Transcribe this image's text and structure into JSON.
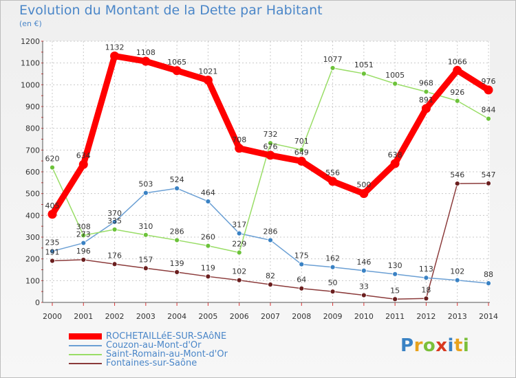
{
  "header": {
    "title": "Evolution du Montant de la Dette par Habitant",
    "unit": "(en €)"
  },
  "logo": {
    "text": "Proxiti",
    "letters": [
      {
        "ch": "P",
        "color": "#3a82c4"
      },
      {
        "ch": "r",
        "color": "#e8a21c"
      },
      {
        "ch": "o",
        "color": "#7bbf3a"
      },
      {
        "ch": "x",
        "color": "#d9391f"
      },
      {
        "ch": "i",
        "color": "#3a82c4"
      },
      {
        "ch": "t",
        "color": "#e8a21c"
      },
      {
        "ch": "i",
        "color": "#7bbf3a"
      }
    ]
  },
  "chart_data": {
    "type": "line",
    "title": "Evolution du Montant de la Dette par Habitant",
    "ylabel": "(en €)",
    "xlabel": "",
    "x": [
      "2000",
      "2001",
      "2002",
      "2003",
      "2004",
      "2005",
      "2006",
      "2007",
      "2008",
      "2009",
      "2010",
      "2011",
      "2012",
      "2013",
      "2014"
    ],
    "ylim": [
      0,
      1200
    ],
    "yticks": [
      0,
      100,
      200,
      300,
      400,
      500,
      600,
      700,
      800,
      900,
      1000,
      1100,
      1200
    ],
    "grid": true,
    "legend_position": "bottom-left",
    "series": [
      {
        "name": "ROCHETAILLéE-SUR-SAôNE",
        "color": "#ff0000",
        "marker": "#ff0000",
        "width": "thick",
        "values": [
          405,
          634,
          1132,
          1108,
          1065,
          1021,
          708,
          676,
          649,
          556,
          500,
          638,
          891,
          1066,
          976
        ]
      },
      {
        "name": "Couzon-au-Mont-d'Or",
        "color": "#6a9fd4",
        "marker": "#3a82c4",
        "width": "thin",
        "values": [
          235,
          273,
          370,
          503,
          524,
          464,
          317,
          286,
          175,
          162,
          146,
          130,
          113,
          102,
          88
        ]
      },
      {
        "name": "Saint-Romain-au-Mont-d'Or",
        "color": "#99dd66",
        "marker": "#6cc23a",
        "width": "thin",
        "values": [
          620,
          308,
          335,
          310,
          286,
          260,
          229,
          732,
          701,
          1077,
          1051,
          1005,
          968,
          926,
          844
        ]
      },
      {
        "name": "Fontaines-sur-Saône",
        "color": "#8b3a3a",
        "marker": "#6b1f1f",
        "width": "thin",
        "values": [
          191,
          196,
          176,
          157,
          139,
          119,
          102,
          82,
          64,
          50,
          33,
          15,
          18,
          546,
          547
        ]
      }
    ]
  }
}
